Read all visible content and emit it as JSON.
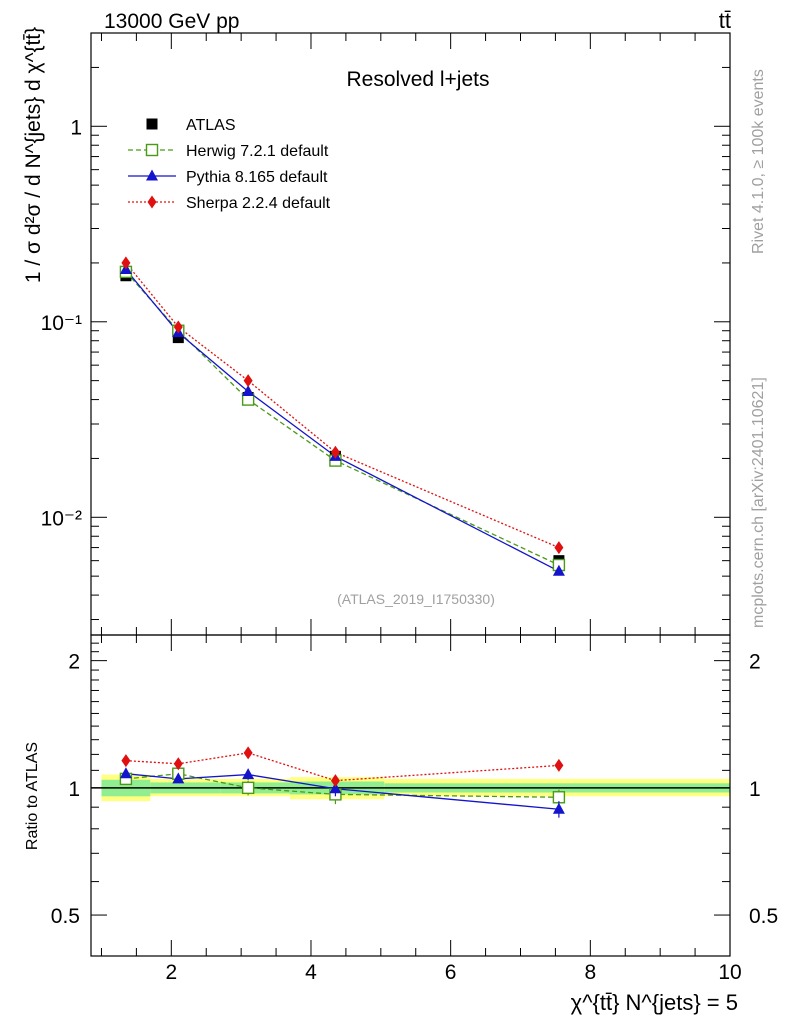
{
  "header": {
    "energy_label": "13000 GeV pp",
    "process_label": "tt̄"
  },
  "side_labels": {
    "rivet": "Rivet 4.1.0, ≥ 100k events",
    "mcplots": "mcplots.cern.ch [arXiv:2401.10621]"
  },
  "chart_data": [
    {
      "type": "line",
      "panel": "main",
      "title": "Resolved l+jets",
      "yscale": "log",
      "ylabel": "1 / σ d²σ / d N^{jets} d χ^{tt̄}",
      "xlabel": "χ^{tt̄} N^{jets} = 5",
      "xlim": [
        0.85,
        10.0
      ],
      "ylim": [
        0.0025,
        3.0
      ],
      "y_tick_labels": [
        "1",
        "10⁻¹",
        "10⁻²"
      ],
      "analysis_label": "(ATLAS_2019_I1750330)",
      "x": [
        1.35,
        2.1,
        3.1,
        4.35,
        7.55
      ],
      "series": [
        {
          "name": "ATLAS",
          "values": [
            0.172,
            0.083,
            0.041,
            0.0205,
            0.006
          ],
          "color": "#000000",
          "marker": "square",
          "style": "none"
        },
        {
          "name": "Herwig 7.2.1 default",
          "values": [
            0.18,
            0.09,
            0.04,
            0.0195,
            0.0057
          ],
          "color": "#4a9a18",
          "marker": "open-square",
          "style": "dashed"
        },
        {
          "name": "Pythia 8.165 default",
          "values": [
            0.185,
            0.088,
            0.044,
            0.0205,
            0.0053
          ],
          "color": "#1414cc",
          "marker": "triangle",
          "style": "solid"
        },
        {
          "name": "Sherpa 2.2.4 default",
          "values": [
            0.2,
            0.094,
            0.05,
            0.0215,
            0.007
          ],
          "color": "#e01010",
          "marker": "diamond",
          "style": "dotted"
        }
      ]
    },
    {
      "type": "line",
      "panel": "ratio",
      "ylabel": "Ratio to ATLAS",
      "xlim": [
        0.85,
        10.0
      ],
      "ylim": [
        0.4,
        2.3
      ],
      "y_ticks": [
        0.5,
        1,
        2
      ],
      "y_tick_labels": [
        "0.5",
        "1",
        "2"
      ],
      "x_ticks": [
        2,
        4,
        6,
        8,
        10
      ],
      "x_tick_labels": [
        "2",
        "4",
        "6",
        "8",
        "10"
      ],
      "x": [
        1.35,
        2.1,
        3.1,
        4.35,
        7.55
      ],
      "bands": [
        {
          "x0": 1.0,
          "x1": 1.7,
          "inner": [
            0.955,
            1.045
          ],
          "outer": [
            0.93,
            1.075
          ]
        },
        {
          "x0": 1.7,
          "x1": 2.7,
          "inner": [
            0.97,
            1.03
          ],
          "outer": [
            0.955,
            1.05
          ]
        },
        {
          "x0": 2.7,
          "x1": 3.7,
          "inner": [
            0.97,
            1.03
          ],
          "outer": [
            0.955,
            1.05
          ]
        },
        {
          "x0": 3.7,
          "x1": 5.05,
          "inner": [
            0.965,
            1.035
          ],
          "outer": [
            0.94,
            1.06
          ]
        },
        {
          "x0": 5.05,
          "x1": 10.0,
          "inner": [
            0.975,
            1.025
          ],
          "outer": [
            0.955,
            1.05
          ]
        }
      ],
      "series": [
        {
          "name": "Herwig 7.2.1 default",
          "values": [
            1.05,
            1.08,
            1.0,
            0.965,
            0.95
          ],
          "errors": [
            0.02,
            0.03,
            0.04,
            0.05,
            0.04
          ],
          "color": "#4a9a18",
          "marker": "open-square",
          "style": "dashed"
        },
        {
          "name": "Pythia 8.165 default",
          "values": [
            1.08,
            1.05,
            1.075,
            0.995,
            0.89
          ],
          "errors": [
            0.02,
            0.02,
            0.03,
            0.04,
            0.04
          ],
          "color": "#1414cc",
          "marker": "triangle",
          "style": "solid"
        },
        {
          "name": "Sherpa 2.2.4 default",
          "values": [
            1.16,
            1.14,
            1.21,
            1.04,
            1.13
          ],
          "errors": [
            0.02,
            0.02,
            0.03,
            0.03,
            0.03
          ],
          "color": "#e01010",
          "marker": "diamond",
          "style": "dotted"
        }
      ]
    }
  ]
}
